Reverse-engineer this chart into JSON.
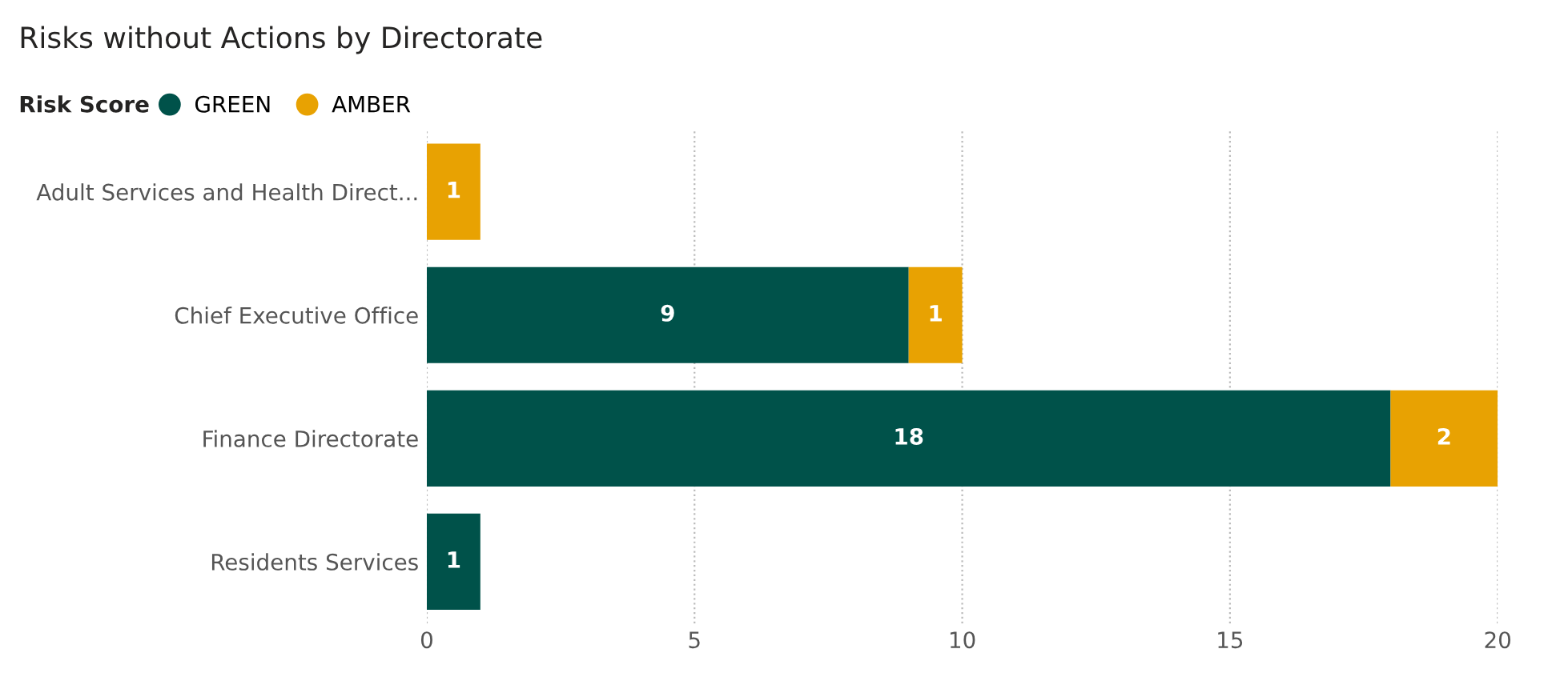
{
  "chart_data": {
    "type": "bar",
    "orientation": "horizontal",
    "stacked": true,
    "title": "Risks without Actions by Directorate",
    "legend_title": "Risk Score",
    "legend": "top left",
    "categories": [
      "Adult Services and Health Direct...",
      "Chief Executive Office",
      "Finance Directorate",
      "Residents Services"
    ],
    "series": [
      {
        "name": "GREEN",
        "color": "#00524a",
        "values": [
          null,
          9,
          18,
          1
        ]
      },
      {
        "name": "AMBER",
        "color": "#e8a202",
        "values": [
          1,
          1,
          2,
          null
        ]
      }
    ],
    "xlim": [
      0,
      20
    ],
    "xticks": [
      0,
      5,
      10,
      15,
      20
    ],
    "grid": "x",
    "data_labels": true
  }
}
